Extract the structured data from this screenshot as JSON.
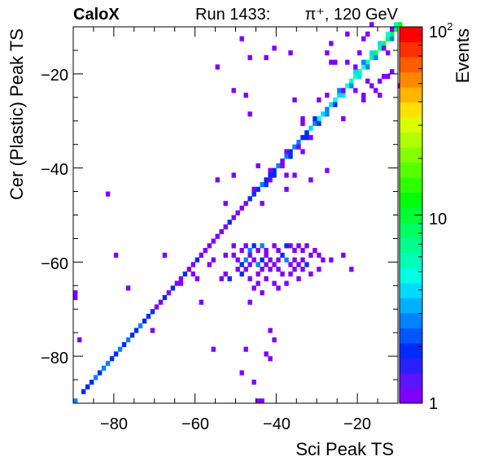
{
  "header": {
    "experiment": "CaloX",
    "run_info": "Run 1433:",
    "beam_info": "π⁺, 120 GeV"
  },
  "chart_data": {
    "type": "heatmap",
    "xlabel": "Sci Peak TS",
    "ylabel": "Cer (Plastic) Peak TS",
    "zlabel": "Events",
    "xlim": [
      -90,
      -10
    ],
    "ylim": [
      -90,
      -10
    ],
    "zlim": [
      1,
      100
    ],
    "zscale": "log",
    "bin_width": 1,
    "x_ticks": [
      -80,
      -60,
      -40,
      -20
    ],
    "x_tick_labels": [
      "−80",
      "−60",
      "−40",
      "−20"
    ],
    "y_ticks": [
      -80,
      -60,
      -40,
      -20
    ],
    "y_tick_labels": [
      "−80",
      "−60",
      "−40",
      "−20"
    ],
    "z_tick_labels": [
      {
        "value": 1,
        "label": "1"
      },
      {
        "value": 10,
        "label": "10"
      },
      {
        "value": 100,
        "label": "10",
        "exponent": "2"
      }
    ],
    "palette": [
      "#7f00ff",
      "#5a14ff",
      "#2a1fff",
      "#002bff",
      "#0057ff",
      "#0083ff",
      "#00afff",
      "#00dbff",
      "#00ffe4",
      "#00ffb8",
      "#00ff8c",
      "#00ff60",
      "#00ff34",
      "#00ff08",
      "#2bff00",
      "#57ff00",
      "#83ff00",
      "#afff00",
      "#dbff00",
      "#ffe000",
      "#ffb400",
      "#ff8800",
      "#ff5c00",
      "#ff3000",
      "#ff0000"
    ],
    "cells": [
      [
        -90,
        -90,
        3
      ],
      [
        -88,
        -88,
        2
      ],
      [
        -87,
        -87,
        2
      ],
      [
        -86,
        -86,
        2
      ],
      [
        -85,
        -85,
        3
      ],
      [
        -84,
        -84,
        2
      ],
      [
        -83,
        -83,
        3
      ],
      [
        -82,
        -82,
        3
      ],
      [
        -81,
        -81,
        2
      ],
      [
        -80,
        -80,
        2
      ],
      [
        -79,
        -79,
        3
      ],
      [
        -78,
        -78,
        2
      ],
      [
        -77,
        -77,
        3
      ],
      [
        -76,
        -76,
        2
      ],
      [
        -75,
        -75,
        2
      ],
      [
        -74,
        -74,
        3
      ],
      [
        -73,
        -73,
        2
      ],
      [
        -72,
        -72,
        2
      ],
      [
        -71,
        -71,
        2
      ],
      [
        -70,
        -70,
        1
      ],
      [
        -69,
        -69,
        1
      ],
      [
        -68,
        -68,
        2
      ],
      [
        -67,
        -67,
        1
      ],
      [
        -66,
        -66,
        2
      ],
      [
        -65,
        -65,
        1
      ],
      [
        -64,
        -64,
        1
      ],
      [
        -63,
        -63,
        2
      ],
      [
        -62,
        -62,
        1
      ],
      [
        -61,
        -61,
        1
      ],
      [
        -60,
        -60,
        2
      ],
      [
        -59,
        -59,
        1
      ],
      [
        -58,
        -58,
        1
      ],
      [
        -57,
        -57,
        1
      ],
      [
        -56,
        -56,
        1
      ],
      [
        -55,
        -55,
        1
      ],
      [
        -54,
        -54,
        1
      ],
      [
        -53,
        -53,
        1
      ],
      [
        -52,
        -52,
        2
      ],
      [
        -51,
        -51,
        1
      ],
      [
        -50,
        -50,
        1
      ],
      [
        -49,
        -49,
        1
      ],
      [
        -48,
        -48,
        1
      ],
      [
        -47,
        -47,
        2
      ],
      [
        -46,
        -46,
        2
      ],
      [
        -45,
        -45,
        2
      ],
      [
        -44,
        -44,
        3
      ],
      [
        -43,
        -43,
        2
      ],
      [
        -42,
        -42,
        2
      ],
      [
        -41,
        -41,
        2
      ],
      [
        -40,
        -40,
        3
      ],
      [
        -39,
        -39,
        4
      ],
      [
        -38,
        -38,
        3
      ],
      [
        -37,
        -37,
        2
      ],
      [
        -36,
        -36,
        3
      ],
      [
        -35,
        -35,
        3
      ],
      [
        -34,
        -34,
        2
      ],
      [
        -33,
        -33,
        3
      ],
      [
        -32,
        -32,
        4
      ],
      [
        -31,
        -31,
        3
      ],
      [
        -30,
        -30,
        5
      ],
      [
        -29,
        -29,
        4
      ],
      [
        -28,
        -28,
        3
      ],
      [
        -27,
        -27,
        4
      ],
      [
        -26,
        -26,
        5
      ],
      [
        -25,
        -25,
        4
      ],
      [
        -24,
        -24,
        6
      ],
      [
        -23,
        -23,
        5
      ],
      [
        -22,
        -22,
        6
      ],
      [
        -21,
        -21,
        6
      ],
      [
        -20,
        -20,
        7
      ],
      [
        -19,
        -19,
        5
      ],
      [
        -18,
        -18,
        6
      ],
      [
        -17,
        -17,
        7
      ],
      [
        -16,
        -16,
        8
      ],
      [
        -15,
        -15,
        7
      ],
      [
        -14,
        -14,
        8
      ],
      [
        -13,
        -13,
        9
      ],
      [
        -12,
        -12,
        10
      ],
      [
        -11,
        -11,
        9
      ],
      [
        -10,
        -10,
        12
      ],
      [
        -43,
        -44,
        2
      ],
      [
        -42,
        -43,
        1
      ],
      [
        -41,
        -42,
        2
      ],
      [
        -39,
        -40,
        1
      ],
      [
        -37,
        -38,
        2
      ],
      [
        -35,
        -36,
        1
      ],
      [
        -33,
        -34,
        2
      ],
      [
        -30,
        -31,
        2
      ],
      [
        -28,
        -29,
        3
      ],
      [
        -26,
        -27,
        2
      ],
      [
        -24,
        -25,
        4
      ],
      [
        -22,
        -23,
        3
      ],
      [
        -20,
        -21,
        4
      ],
      [
        -18,
        -19,
        3
      ],
      [
        -16,
        -17,
        3
      ],
      [
        -14,
        -15,
        4
      ],
      [
        -12,
        -13,
        3
      ],
      [
        -46,
        -45,
        1
      ],
      [
        -38,
        -37,
        1
      ],
      [
        -31,
        -30,
        2
      ],
      [
        -25,
        -24,
        3
      ],
      [
        -21,
        -20,
        4
      ],
      [
        -19,
        -18,
        3
      ],
      [
        -17,
        -16,
        4
      ],
      [
        -15,
        -14,
        4
      ],
      [
        -13,
        -12,
        5
      ],
      [
        -11,
        -10,
        6
      ],
      [
        -51,
        -57,
        1
      ],
      [
        -49,
        -58,
        1
      ],
      [
        -48,
        -57,
        1
      ],
      [
        -47,
        -58,
        3
      ],
      [
        -46,
        -57,
        2
      ],
      [
        -45,
        -58,
        1
      ],
      [
        -44,
        -57,
        3
      ],
      [
        -43,
        -58,
        1
      ],
      [
        -41,
        -57,
        1
      ],
      [
        -40,
        -58,
        1
      ],
      [
        -38,
        -57,
        2
      ],
      [
        -37,
        -57,
        1
      ],
      [
        -36,
        -58,
        1
      ],
      [
        -35,
        -57,
        1
      ],
      [
        -34,
        -58,
        1
      ],
      [
        -33,
        -57,
        1
      ],
      [
        -31,
        -58,
        1
      ],
      [
        -30,
        -59,
        1
      ],
      [
        -51,
        -59,
        1
      ],
      [
        -50,
        -60,
        1
      ],
      [
        -49,
        -61,
        2
      ],
      [
        -48,
        -60,
        3
      ],
      [
        -47,
        -59,
        1
      ],
      [
        -46,
        -60,
        1
      ],
      [
        -45,
        -61,
        3
      ],
      [
        -44,
        -60,
        2
      ],
      [
        -43,
        -59,
        1
      ],
      [
        -42,
        -60,
        1
      ],
      [
        -41,
        -61,
        1
      ],
      [
        -40,
        -60,
        1
      ],
      [
        -39,
        -59,
        2
      ],
      [
        -38,
        -60,
        3
      ],
      [
        -37,
        -61,
        1
      ],
      [
        -36,
        -60,
        1
      ],
      [
        -35,
        -61,
        1
      ],
      [
        -34,
        -60,
        1
      ],
      [
        -33,
        -61,
        2
      ],
      [
        -32,
        -59,
        1
      ],
      [
        -29,
        -60,
        1
      ],
      [
        -27,
        -60,
        1
      ],
      [
        -24,
        -59,
        1
      ],
      [
        -50,
        -62,
        1
      ],
      [
        -49,
        -63,
        2
      ],
      [
        -48,
        -62,
        1
      ],
      [
        -47,
        -61,
        1
      ],
      [
        -45,
        -63,
        1
      ],
      [
        -44,
        -62,
        1
      ],
      [
        -43,
        -61,
        1
      ],
      [
        -42,
        -62,
        1
      ],
      [
        -40,
        -62,
        1
      ],
      [
        -39,
        -63,
        1
      ],
      [
        -37,
        -63,
        1
      ],
      [
        -36,
        -62,
        1
      ],
      [
        -34,
        -62,
        1
      ],
      [
        -32,
        -63,
        1
      ],
      [
        -30,
        -62,
        1
      ],
      [
        -22,
        -62,
        1
      ],
      [
        -54,
        -64,
        1
      ],
      [
        -53,
        -63,
        1
      ],
      [
        -52,
        -64,
        2
      ],
      [
        -47,
        -64,
        1
      ],
      [
        -45,
        -65,
        1
      ],
      [
        -43,
        -64,
        1
      ],
      [
        -41,
        -65,
        1
      ],
      [
        -38,
        -65,
        1
      ],
      [
        -35,
        -64,
        1
      ],
      [
        -46,
        -66,
        1
      ],
      [
        -44,
        -67,
        1
      ],
      [
        -40,
        -66,
        1
      ],
      [
        -53,
        -59,
        1
      ],
      [
        -56,
        -60,
        1
      ],
      [
        -57,
        -61,
        1
      ],
      [
        -61,
        -63,
        1
      ],
      [
        -60,
        -64,
        1
      ],
      [
        -64,
        -65,
        1
      ],
      [
        -68,
        -59,
        1
      ],
      [
        -80,
        -59,
        1
      ],
      [
        -77,
        -66,
        1
      ],
      [
        -90,
        -67,
        1
      ],
      [
        -90,
        -68,
        1
      ],
      [
        -47,
        -69,
        1
      ],
      [
        -59,
        -69,
        1
      ],
      [
        -42,
        -75,
        1
      ],
      [
        -71,
        -75,
        1
      ],
      [
        -41,
        -77,
        1
      ],
      [
        -89,
        -77,
        1
      ],
      [
        -56,
        -79,
        1
      ],
      [
        -48,
        -79,
        1
      ],
      [
        -43,
        -80,
        1
      ],
      [
        -42,
        -81,
        1
      ],
      [
        -49,
        -84,
        1
      ],
      [
        -46,
        -86,
        1
      ],
      [
        -45,
        -90,
        1
      ],
      [
        -44,
        -90,
        1
      ],
      [
        -82,
        -46,
        1
      ],
      [
        -53,
        -48,
        1
      ],
      [
        -44,
        -48,
        1
      ],
      [
        -33,
        -33,
        2
      ],
      [
        -38,
        -45,
        1
      ],
      [
        -36,
        -42,
        1
      ],
      [
        -55,
        -43,
        1
      ],
      [
        -51,
        -42,
        1
      ],
      [
        -28,
        -41,
        1
      ],
      [
        -32,
        -34,
        1
      ],
      [
        -34,
        -30,
        1
      ],
      [
        -36,
        -26,
        1
      ],
      [
        -28,
        -25,
        1
      ],
      [
        -51,
        -24,
        1
      ],
      [
        -15,
        -25,
        1
      ],
      [
        -30,
        -26,
        1
      ],
      [
        -34,
        -37,
        1
      ],
      [
        -39,
        -39,
        1
      ],
      [
        -45,
        -40,
        1
      ],
      [
        -42,
        -41,
        1
      ],
      [
        -38,
        -42,
        1
      ],
      [
        -32,
        -43,
        1
      ],
      [
        -24,
        -30,
        1
      ],
      [
        -55,
        -19,
        1
      ],
      [
        -34,
        -31,
        1
      ],
      [
        -24,
        -24,
        1
      ],
      [
        -26,
        -18,
        1
      ],
      [
        -43,
        -17,
        1
      ],
      [
        -47,
        -17,
        1
      ],
      [
        -47,
        -29,
        1
      ],
      [
        -48,
        -25,
        1
      ],
      [
        -37,
        -16,
        1
      ],
      [
        -49,
        -13,
        1
      ],
      [
        -41,
        -15,
        1
      ],
      [
        -27,
        -14,
        1
      ],
      [
        -28,
        -16,
        1
      ],
      [
        -27,
        -18,
        1
      ],
      [
        -23,
        -18,
        1
      ],
      [
        -21,
        -19,
        1
      ],
      [
        -20,
        -16,
        1
      ],
      [
        -19,
        -13,
        1
      ],
      [
        -18,
        -12,
        1
      ],
      [
        -23,
        -12,
        1
      ],
      [
        -17,
        -10,
        1
      ],
      [
        -14,
        -15,
        1
      ],
      [
        -13,
        -16,
        1
      ],
      [
        -10,
        -23,
        1
      ],
      [
        -13,
        -21,
        1
      ],
      [
        -12,
        -20,
        1
      ],
      [
        -14,
        -21,
        1
      ],
      [
        -12,
        -11,
        1
      ],
      [
        -21,
        -24,
        1
      ],
      [
        -19,
        -26,
        1
      ],
      [
        -19,
        -25,
        1
      ],
      [
        -15,
        -22,
        1
      ],
      [
        -16,
        -24,
        1
      ],
      [
        -17,
        -23,
        1
      ],
      [
        -18,
        -22,
        1
      ]
    ]
  }
}
